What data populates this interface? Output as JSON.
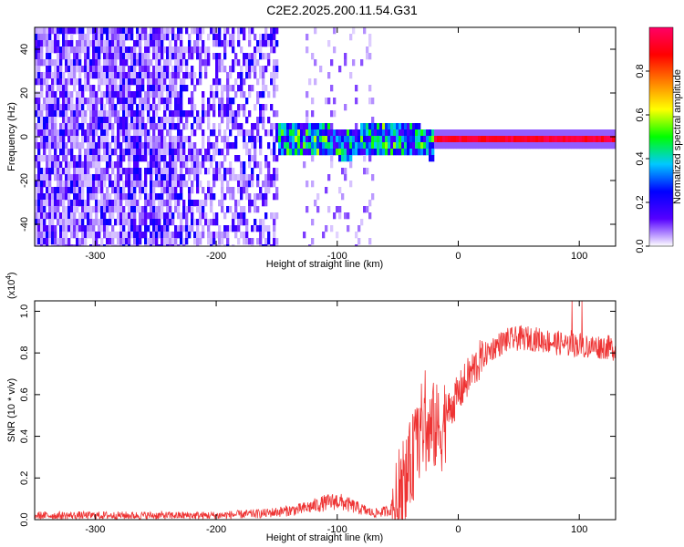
{
  "figure": {
    "title": "C2E2.2025.200.11.54.G31"
  },
  "chart_data": [
    {
      "type": "heatmap",
      "xlabel": "Height of straight line (km)",
      "ylabel": "Frequency (Hz)",
      "xlim": [
        -350,
        130
      ],
      "ylim": [
        -50,
        50
      ],
      "xticks": [
        -300,
        -200,
        -100,
        0,
        100
      ],
      "yticks": [
        -40,
        -20,
        0,
        20,
        40
      ],
      "grid": false,
      "colorbar": {
        "label": "Normalized spectral amplitude",
        "range": [
          0,
          1
        ],
        "ticks": [
          0.0,
          0.2,
          0.4,
          0.6,
          0.8
        ],
        "colors": [
          "#ffffff",
          "#5500ff",
          "#0000ff",
          "#00c8ff",
          "#00ff00",
          "#ffff00",
          "#ff8000",
          "#ff0000",
          "#ff0066"
        ]
      },
      "features": [
        {
          "x_range": [
            -350,
            -150
          ],
          "freq_range": [
            -50,
            50
          ],
          "amplitude": 0.1
        },
        {
          "x_range": [
            -155,
            -20
          ],
          "freq_range": [
            -8,
            8
          ],
          "amplitude": 0.35
        },
        {
          "x_range": [
            -20,
            130
          ],
          "freq_center": 0,
          "amplitude": 0.95
        }
      ]
    },
    {
      "type": "line",
      "xlabel": "Height of straight line (km)",
      "ylabel": "SNR (10 * v/v)",
      "yscale_label": "(x10",
      "yscale_exponent": "4",
      "yscale_close": ")",
      "xlim": [
        -350,
        130
      ],
      "ylim": [
        0,
        1.05
      ],
      "xticks": [
        -300,
        -200,
        -100,
        0,
        100
      ],
      "yticks": [
        0.0,
        0.2,
        0.4,
        0.6,
        0.8,
        1.0
      ],
      "color": "#ee3333",
      "grid": false,
      "x": [
        -350,
        -300,
        -250,
        -200,
        -160,
        -130,
        -110,
        -100,
        -90,
        -70,
        -60,
        -50,
        -45,
        -40,
        -35,
        -30,
        -25,
        -20,
        -15,
        -10,
        -5,
        0,
        10,
        20,
        30,
        40,
        50,
        60,
        70,
        80,
        90,
        100,
        110,
        120,
        130
      ],
      "y": [
        0.02,
        0.02,
        0.02,
        0.02,
        0.03,
        0.05,
        0.08,
        0.09,
        0.07,
        0.03,
        0.04,
        0.06,
        0.12,
        0.25,
        0.35,
        0.45,
        0.4,
        0.45,
        0.42,
        0.5,
        0.55,
        0.6,
        0.7,
        0.78,
        0.83,
        0.86,
        0.87,
        0.87,
        0.86,
        0.85,
        0.84,
        0.84,
        0.83,
        0.83,
        0.82
      ]
    }
  ]
}
